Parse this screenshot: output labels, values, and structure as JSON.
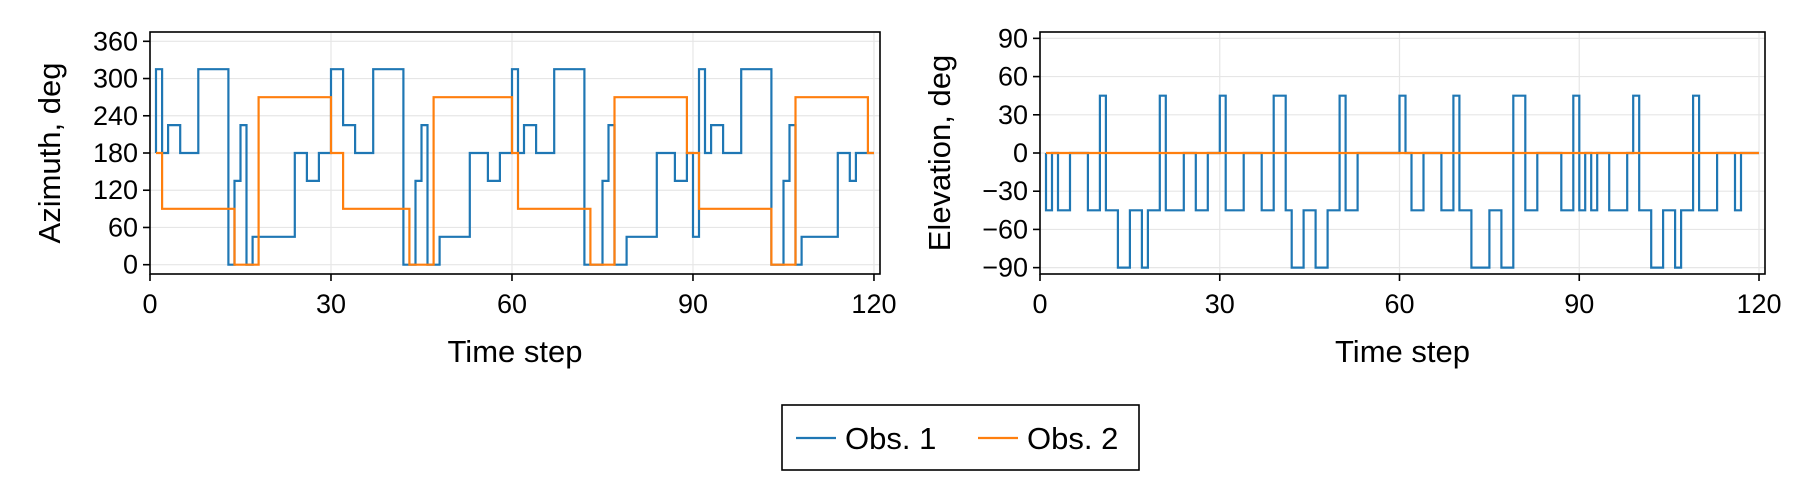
{
  "chart_data": [
    {
      "type": "line",
      "step": true,
      "title": "",
      "xlabel": "Time step",
      "ylabel": "Azimuth, deg",
      "xlim": [
        0,
        121
      ],
      "ylim": [
        -15,
        375
      ],
      "xticks": [
        0,
        30,
        60,
        90,
        120
      ],
      "xtick_labels": [
        "0",
        "30",
        "60",
        "90",
        "120"
      ],
      "yticks": [
        0,
        60,
        120,
        180,
        240,
        300,
        360
      ],
      "ytick_labels": [
        "0",
        "60",
        "120",
        "180",
        "240",
        "300",
        "360"
      ],
      "grid": true,
      "series": [
        {
          "name": "Obs. 1",
          "color": "#1f77b4",
          "points": [
            [
              1,
              180
            ],
            [
              1,
              315
            ],
            [
              2,
              315
            ],
            [
              2,
              180
            ],
            [
              3,
              180
            ],
            [
              3,
              225
            ],
            [
              5,
              225
            ],
            [
              5,
              180
            ],
            [
              8,
              180
            ],
            [
              8,
              315
            ],
            [
              13,
              315
            ],
            [
              13,
              0
            ],
            [
              14,
              0
            ],
            [
              14,
              135
            ],
            [
              15,
              135
            ],
            [
              15,
              225
            ],
            [
              16,
              225
            ],
            [
              16,
              0
            ],
            [
              17,
              0
            ],
            [
              17,
              45
            ],
            [
              24,
              45
            ],
            [
              24,
              180
            ],
            [
              26,
              180
            ],
            [
              26,
              135
            ],
            [
              28,
              135
            ],
            [
              28,
              180
            ],
            [
              30,
              180
            ],
            [
              30,
              315
            ],
            [
              32,
              315
            ],
            [
              32,
              225
            ],
            [
              34,
              225
            ],
            [
              34,
              180
            ],
            [
              37,
              180
            ],
            [
              37,
              315
            ],
            [
              42,
              315
            ],
            [
              42,
              0
            ],
            [
              44,
              0
            ],
            [
              44,
              135
            ],
            [
              45,
              135
            ],
            [
              45,
              225
            ],
            [
              46,
              225
            ],
            [
              46,
              0
            ],
            [
              48,
              0
            ],
            [
              48,
              45
            ],
            [
              53,
              45
            ],
            [
              53,
              180
            ],
            [
              56,
              180
            ],
            [
              56,
              135
            ],
            [
              58,
              135
            ],
            [
              58,
              180
            ],
            [
              60,
              180
            ],
            [
              60,
              315
            ],
            [
              61,
              315
            ],
            [
              61,
              180
            ],
            [
              62,
              180
            ],
            [
              62,
              225
            ],
            [
              64,
              225
            ],
            [
              64,
              180
            ],
            [
              67,
              180
            ],
            [
              67,
              315
            ],
            [
              72,
              315
            ],
            [
              72,
              0
            ],
            [
              75,
              0
            ],
            [
              75,
              135
            ],
            [
              76,
              135
            ],
            [
              76,
              225
            ],
            [
              77,
              225
            ],
            [
              77,
              0
            ],
            [
              79,
              0
            ],
            [
              79,
              45
            ],
            [
              84,
              45
            ],
            [
              84,
              180
            ],
            [
              87,
              180
            ],
            [
              87,
              135
            ],
            [
              89,
              135
            ],
            [
              89,
              180
            ],
            [
              90,
              180
            ],
            [
              90,
              45
            ],
            [
              91,
              45
            ],
            [
              91,
              315
            ],
            [
              92,
              315
            ],
            [
              92,
              180
            ],
            [
              93,
              180
            ],
            [
              93,
              225
            ],
            [
              95,
              225
            ],
            [
              95,
              180
            ],
            [
              98,
              180
            ],
            [
              98,
              315
            ],
            [
              103,
              315
            ],
            [
              103,
              0
            ],
            [
              105,
              0
            ],
            [
              105,
              135
            ],
            [
              106,
              135
            ],
            [
              106,
              225
            ],
            [
              107,
              225
            ],
            [
              107,
              0
            ],
            [
              108,
              0
            ],
            [
              108,
              45
            ],
            [
              114,
              45
            ],
            [
              114,
              180
            ],
            [
              116,
              180
            ],
            [
              116,
              135
            ],
            [
              117,
              135
            ],
            [
              117,
              180
            ],
            [
              119,
              180
            ],
            [
              119,
              180
            ],
            [
              120,
              180
            ]
          ]
        },
        {
          "name": "Obs. 2",
          "color": "#ff7f0e",
          "points": [
            [
              1,
              180
            ],
            [
              2,
              180
            ],
            [
              2,
              90
            ],
            [
              14,
              90
            ],
            [
              14,
              0
            ],
            [
              18,
              0
            ],
            [
              18,
              270
            ],
            [
              30,
              270
            ],
            [
              30,
              180
            ],
            [
              32,
              180
            ],
            [
              32,
              90
            ],
            [
              43,
              90
            ],
            [
              43,
              0
            ],
            [
              47,
              0
            ],
            [
              47,
              270
            ],
            [
              60,
              270
            ],
            [
              60,
              180
            ],
            [
              61,
              180
            ],
            [
              61,
              90
            ],
            [
              73,
              90
            ],
            [
              73,
              0
            ],
            [
              77,
              0
            ],
            [
              77,
              270
            ],
            [
              89,
              270
            ],
            [
              89,
              180
            ],
            [
              91,
              180
            ],
            [
              91,
              90
            ],
            [
              103,
              90
            ],
            [
              103,
              0
            ],
            [
              107,
              0
            ],
            [
              107,
              270
            ],
            [
              119,
              270
            ],
            [
              119,
              180
            ],
            [
              120,
              180
            ]
          ]
        }
      ]
    },
    {
      "type": "line",
      "step": true,
      "title": "",
      "xlabel": "Time step",
      "ylabel": "Elevation, deg",
      "xlim": [
        0,
        121
      ],
      "ylim": [
        -95,
        95
      ],
      "xticks": [
        0,
        30,
        60,
        90,
        120
      ],
      "xtick_labels": [
        "0",
        "30",
        "60",
        "90",
        "120"
      ],
      "yticks": [
        -90,
        -60,
        -30,
        0,
        30,
        60,
        90
      ],
      "ytick_labels": [
        "−90",
        "−60",
        "−30",
        "0",
        "30",
        "60",
        "90"
      ],
      "grid": true,
      "series": [
        {
          "name": "Obs. 1",
          "color": "#1f77b4",
          "points": [
            [
              1,
              0
            ],
            [
              1,
              -45
            ],
            [
              2,
              -45
            ],
            [
              2,
              0
            ],
            [
              3,
              0
            ],
            [
              3,
              -45
            ],
            [
              5,
              -45
            ],
            [
              5,
              0
            ],
            [
              8,
              0
            ],
            [
              8,
              -45
            ],
            [
              10,
              -45
            ],
            [
              10,
              45
            ],
            [
              11,
              45
            ],
            [
              11,
              -45
            ],
            [
              13,
              -45
            ],
            [
              13,
              -90
            ],
            [
              15,
              -90
            ],
            [
              15,
              -45
            ],
            [
              17,
              -45
            ],
            [
              17,
              -90
            ],
            [
              18,
              -90
            ],
            [
              18,
              -45
            ],
            [
              20,
              -45
            ],
            [
              20,
              45
            ],
            [
              21,
              45
            ],
            [
              21,
              -45
            ],
            [
              24,
              -45
            ],
            [
              24,
              0
            ],
            [
              26,
              0
            ],
            [
              26,
              -45
            ],
            [
              28,
              -45
            ],
            [
              28,
              0
            ],
            [
              30,
              0
            ],
            [
              30,
              45
            ],
            [
              31,
              45
            ],
            [
              31,
              -45
            ],
            [
              34,
              -45
            ],
            [
              34,
              0
            ],
            [
              37,
              0
            ],
            [
              37,
              -45
            ],
            [
              39,
              -45
            ],
            [
              39,
              45
            ],
            [
              41,
              45
            ],
            [
              41,
              -45
            ],
            [
              42,
              -45
            ],
            [
              42,
              -90
            ],
            [
              44,
              -90
            ],
            [
              44,
              -45
            ],
            [
              46,
              -45
            ],
            [
              46,
              -90
            ],
            [
              48,
              -90
            ],
            [
              48,
              -45
            ],
            [
              50,
              -45
            ],
            [
              50,
              45
            ],
            [
              51,
              45
            ],
            [
              51,
              -45
            ],
            [
              53,
              -45
            ],
            [
              53,
              0
            ],
            [
              60,
              0
            ],
            [
              60,
              45
            ],
            [
              61,
              45
            ],
            [
              61,
              0
            ],
            [
              62,
              0
            ],
            [
              62,
              -45
            ],
            [
              64,
              -45
            ],
            [
              64,
              0
            ],
            [
              67,
              0
            ],
            [
              67,
              -45
            ],
            [
              69,
              -45
            ],
            [
              69,
              45
            ],
            [
              70,
              45
            ],
            [
              70,
              -45
            ],
            [
              72,
              -45
            ],
            [
              72,
              -90
            ],
            [
              75,
              -90
            ],
            [
              75,
              -45
            ],
            [
              77,
              -45
            ],
            [
              77,
              -90
            ],
            [
              79,
              -90
            ],
            [
              79,
              45
            ],
            [
              81,
              45
            ],
            [
              81,
              -45
            ],
            [
              83,
              -45
            ],
            [
              83,
              0
            ],
            [
              87,
              0
            ],
            [
              87,
              -45
            ],
            [
              89,
              -45
            ],
            [
              89,
              0
            ],
            [
              89,
              45
            ],
            [
              90,
              45
            ],
            [
              90,
              -45
            ],
            [
              91,
              -45
            ],
            [
              91,
              0
            ],
            [
              92,
              0
            ],
            [
              92,
              -45
            ],
            [
              93,
              -45
            ],
            [
              93,
              0
            ],
            [
              95,
              0
            ],
            [
              95,
              -45
            ],
            [
              98,
              -45
            ],
            [
              98,
              0
            ],
            [
              99,
              0
            ],
            [
              99,
              45
            ],
            [
              100,
              45
            ],
            [
              100,
              -45
            ],
            [
              102,
              -45
            ],
            [
              102,
              -90
            ],
            [
              104,
              -90
            ],
            [
              104,
              -45
            ],
            [
              106,
              -45
            ],
            [
              106,
              -90
            ],
            [
              107,
              -90
            ],
            [
              107,
              -45
            ],
            [
              109,
              -45
            ],
            [
              109,
              45
            ],
            [
              110,
              45
            ],
            [
              110,
              -45
            ],
            [
              113,
              -45
            ],
            [
              113,
              0
            ],
            [
              116,
              0
            ],
            [
              116,
              -45
            ],
            [
              117,
              -45
            ],
            [
              117,
              0
            ],
            [
              120,
              0
            ]
          ]
        },
        {
          "name": "Obs. 2",
          "color": "#ff7f0e",
          "points": [
            [
              1,
              0
            ],
            [
              120,
              0
            ]
          ]
        }
      ]
    }
  ],
  "legend": {
    "entries": [
      {
        "label": "Obs. 1",
        "color": "#1f77b4"
      },
      {
        "label": "Obs. 2",
        "color": "#ff7f0e"
      }
    ]
  }
}
